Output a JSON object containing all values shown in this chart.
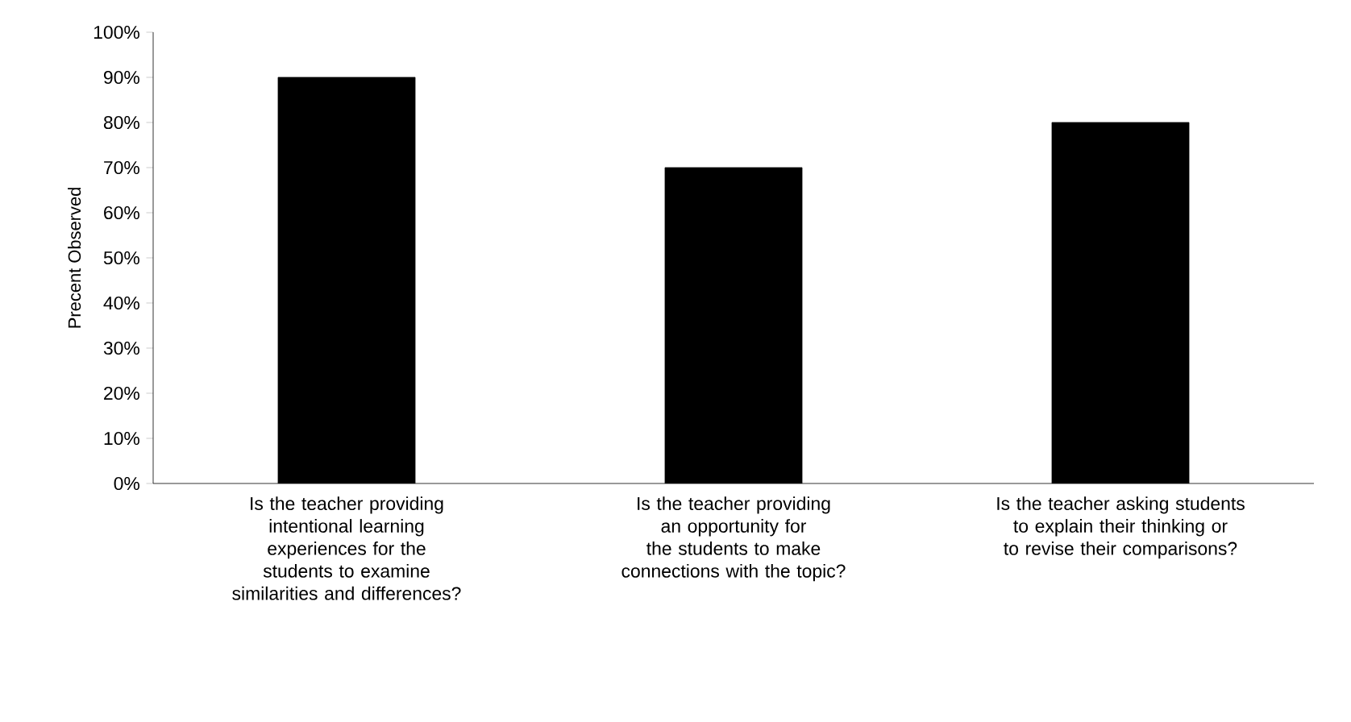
{
  "chart_data": {
    "type": "bar",
    "ylabel": "Precent Observed",
    "categories": [
      "Is the teacher providing intentional learning experiences for the students to examine similarities and differences?",
      "Is the teacher providing an opportunity for the students to make connections with the topic?",
      "Is the teacher asking students to explain their thinking or to revise their comparisons?"
    ],
    "values": [
      90,
      70,
      80
    ],
    "color": "#000000",
    "ylim": [
      0,
      100
    ],
    "yticks": [
      {
        "value": 0,
        "label": "0%"
      },
      {
        "value": 10,
        "label": "10%"
      },
      {
        "value": 20,
        "label": "20%"
      },
      {
        "value": 30,
        "label": "30%"
      },
      {
        "value": 40,
        "label": "40%"
      },
      {
        "value": 50,
        "label": "50%"
      },
      {
        "value": 60,
        "label": "60%"
      },
      {
        "value": 70,
        "label": "70%"
      },
      {
        "value": 80,
        "label": "80%"
      },
      {
        "value": 90,
        "label": "90%"
      },
      {
        "value": 100,
        "label": "100%"
      }
    ]
  }
}
